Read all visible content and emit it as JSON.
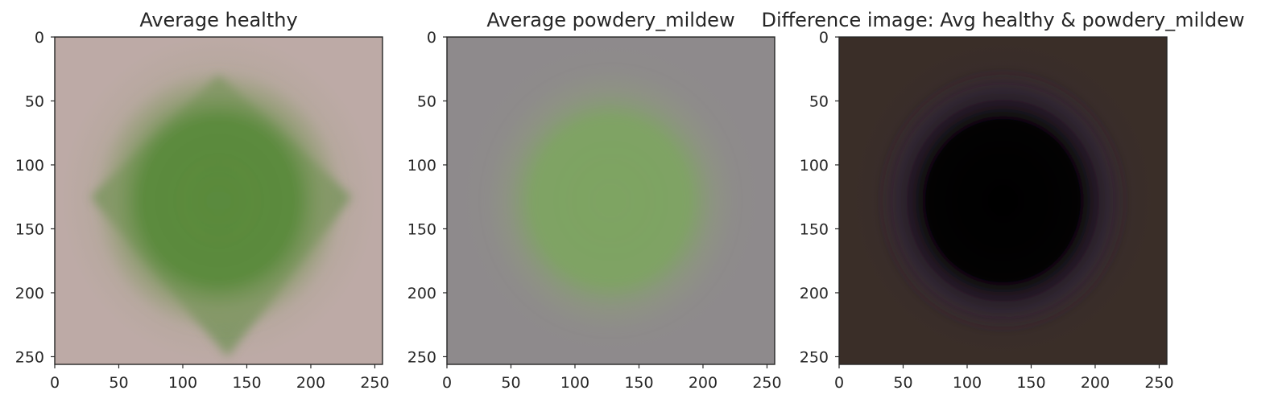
{
  "chart_data": [
    {
      "type": "image",
      "title": "Average healthy",
      "xticks": [
        0,
        50,
        100,
        150,
        200,
        250
      ],
      "yticks": [
        0,
        50,
        100,
        150,
        200,
        250
      ],
      "xlim": [
        0,
        256
      ],
      "ylim": [
        256,
        0
      ],
      "colors": {
        "background": "#bdaaa6",
        "leaf": "#5a8a3c",
        "leaf_edge": "#8a9a6a"
      }
    },
    {
      "type": "image",
      "title": "Average powdery_mildew",
      "xticks": [
        0,
        50,
        100,
        150,
        200,
        250
      ],
      "yticks": [
        0,
        50,
        100,
        150,
        200,
        250
      ],
      "xlim": [
        0,
        256
      ],
      "ylim": [
        256,
        0
      ],
      "colors": {
        "background": "#8e8a8c",
        "leaf": "#7ea462",
        "leaf_edge": "#8e9680"
      }
    },
    {
      "type": "image",
      "title": "Difference image: Avg healthy & powdery_mildew",
      "xticks": [
        0,
        50,
        100,
        150,
        200,
        250
      ],
      "yticks": [
        0,
        50,
        100,
        150,
        200,
        250
      ],
      "xlim": [
        0,
        256
      ],
      "ylim": [
        256,
        0
      ],
      "colors": {
        "background": "#3a2e28",
        "leaf": "#060406",
        "leaf_edge": "#2e2038"
      }
    }
  ]
}
